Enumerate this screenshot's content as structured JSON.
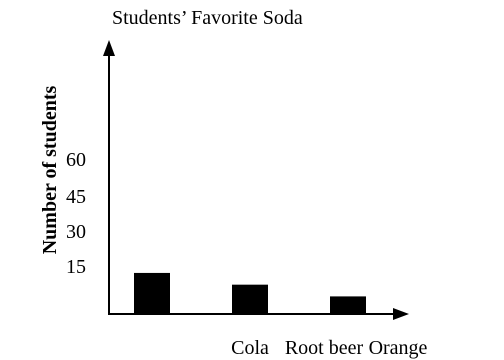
{
  "chart_data": {
    "type": "bar",
    "title": "Students’ Favorite Soda",
    "xlabel": "",
    "ylabel": "Number of students",
    "categories": [
      "Cola",
      "Root beer",
      "Orange"
    ],
    "values": [
      14,
      10,
      6
    ],
    "yticks": [
      "15",
      "30",
      "45",
      "60"
    ],
    "ytick_values": [
      15,
      30,
      45,
      60
    ],
    "ylim": [
      0,
      90
    ],
    "grid": false,
    "legend": "none",
    "bar_color": "#000000"
  }
}
